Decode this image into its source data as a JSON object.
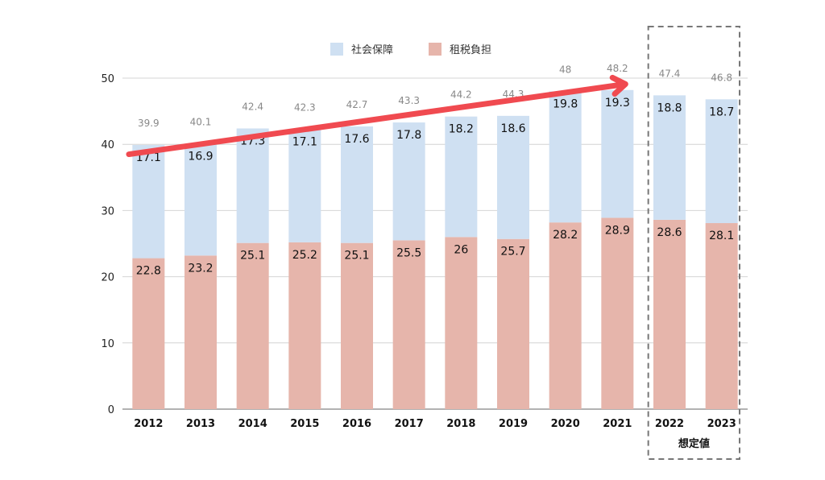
{
  "chart_data": {
    "type": "bar",
    "stacked": true,
    "categories": [
      "2012",
      "2013",
      "2014",
      "2015",
      "2016",
      "2017",
      "2018",
      "2019",
      "2020",
      "2021",
      "2022",
      "2023"
    ],
    "series": [
      {
        "name": "租税負担",
        "color": "#e6b5ab",
        "values": [
          22.8,
          23.2,
          25.1,
          25.2,
          25.1,
          25.5,
          26,
          25.7,
          28.2,
          28.9,
          28.6,
          28.1
        ]
      },
      {
        "name": "社会保障",
        "color": "#cfe0f2",
        "values": [
          17.1,
          16.9,
          17.3,
          17.1,
          17.6,
          17.8,
          18.2,
          18.6,
          19.8,
          19.3,
          18.8,
          18.7
        ]
      }
    ],
    "totals": [
      "39.9",
      "40.1",
      "42.4",
      "42.3",
      "42.7",
      "43.3",
      "44.2",
      "44.3",
      "48",
      "48.2",
      "47.4",
      "46.8"
    ],
    "yticks": [
      0,
      10,
      20,
      30,
      40,
      50
    ],
    "ylim": [
      0,
      50
    ],
    "grid": true,
    "legend": {
      "placement": "top-center",
      "order": [
        "社会保障",
        "租税負担"
      ]
    },
    "projection_note": "想定値",
    "projection_categories": [
      "2022",
      "2023"
    ],
    "trend_arrow": {
      "from": [
        "2012",
        38.5
      ],
      "to": [
        "2021",
        49.1
      ],
      "color": "#f04a50"
    }
  }
}
